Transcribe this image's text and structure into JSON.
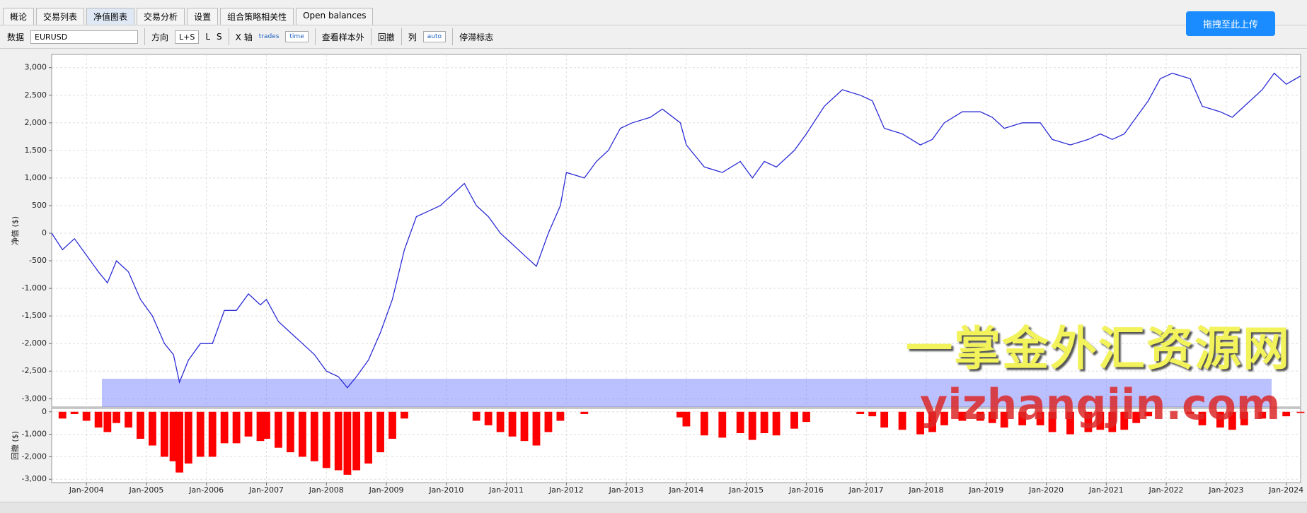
{
  "tabs": [
    "概论",
    "交易列表",
    "净值图表",
    "交易分析",
    "设置",
    "组合策略相关性",
    "Open balances"
  ],
  "toolbar": {
    "data_label": "数据",
    "symbol": "EURUSD",
    "direction_label": "方向",
    "directions": [
      "L+S",
      "L",
      "S"
    ],
    "x_axis_label": "X 轴",
    "x_axis_options": [
      "trades",
      "time"
    ],
    "out_of_sample": "查看样本外",
    "drawdown_label": "回撤",
    "columns_label": "列",
    "columns_option": "auto",
    "stagnation_label": "停滞标志"
  },
  "upload_button": "拖拽至此上传",
  "watermark": {
    "title": "一掌金外汇资源网",
    "site": "yizhangjin.com"
  },
  "chart_data": [
    {
      "type": "line",
      "ylabel": "净值 ($)",
      "xlim": [
        2003.42,
        2024.24
      ],
      "ylim": [
        -3150,
        3240
      ],
      "yticks": [
        {
          "value": 3000,
          "label": "3,000"
        },
        {
          "value": 2500,
          "label": "2,500"
        },
        {
          "value": 2000,
          "label": "2,000"
        },
        {
          "value": 1500,
          "label": "1,500"
        },
        {
          "value": 1000,
          "label": "1,000"
        },
        500,
        0,
        -500,
        {
          "value": -1000,
          "label": "-1,000"
        },
        {
          "value": -1500,
          "label": "-1,500"
        },
        {
          "value": -2000,
          "label": "-2,000"
        },
        {
          "value": -2500,
          "label": "-2,500"
        },
        {
          "value": -3000,
          "label": "-3,000"
        }
      ],
      "grid": true,
      "series": [
        {
          "color": "#2b2bd6",
          "x": [
            2003.42,
            2003.6,
            2003.8,
            2004.0,
            2004.2,
            2004.35,
            2004.5,
            2004.7,
            2004.9,
            2005.1,
            2005.3,
            2005.45,
            2005.55,
            2005.7,
            2005.9,
            2006.1,
            2006.3,
            2006.5,
            2006.7,
            2006.9,
            2007.0,
            2007.2,
            2007.4,
            2007.6,
            2007.8,
            2008.0,
            2008.2,
            2008.35,
            2008.5,
            2008.7,
            2008.9,
            2009.1,
            2009.3,
            2009.5,
            2009.7,
            2009.9,
            2010.1,
            2010.3,
            2010.5,
            2010.7,
            2010.9,
            2011.1,
            2011.3,
            2011.5,
            2011.7,
            2011.9,
            2012.0,
            2012.3,
            2012.5,
            2012.7,
            2012.9,
            2013.1,
            2013.4,
            2013.6,
            2013.9,
            2014.0,
            2014.3,
            2014.6,
            2014.9,
            2015.1,
            2015.3,
            2015.5,
            2015.8,
            2016.0,
            2016.3,
            2016.6,
            2016.9,
            2017.1,
            2017.3,
            2017.6,
            2017.9,
            2018.1,
            2018.3,
            2018.6,
            2018.9,
            2019.1,
            2019.3,
            2019.6,
            2019.9,
            2020.1,
            2020.4,
            2020.7,
            2020.9,
            2021.1,
            2021.3,
            2021.5,
            2021.7,
            2021.9,
            2022.1,
            2022.4,
            2022.6,
            2022.9,
            2023.1,
            2023.3,
            2023.6,
            2023.8,
            2024.0,
            2024.24
          ],
          "values": [
            0,
            -300,
            -100,
            -400,
            -700,
            -900,
            -500,
            -700,
            -1200,
            -1500,
            -2000,
            -2200,
            -2700,
            -2300,
            -2000,
            -2000,
            -1400,
            -1400,
            -1100,
            -1300,
            -1200,
            -1600,
            -1800,
            -2000,
            -2200,
            -2500,
            -2600,
            -2800,
            -2600,
            -2300,
            -1800,
            -1200,
            -300,
            300,
            400,
            500,
            700,
            900,
            500,
            300,
            0,
            -200,
            -400,
            -600,
            0,
            500,
            1100,
            1000,
            1300,
            1500,
            1900,
            2000,
            2100,
            2250,
            2000,
            1600,
            1200,
            1100,
            1300,
            1000,
            1300,
            1200,
            1500,
            1800,
            2300,
            2600,
            2500,
            2400,
            1900,
            1800,
            1600,
            1700,
            2000,
            2200,
            2200,
            2100,
            1900,
            2000,
            2000,
            1700,
            1600,
            1700,
            1800,
            1700,
            1800,
            2100,
            2400,
            2800,
            2900,
            2800,
            2300,
            2200,
            2100,
            2300,
            2600,
            2900,
            2700,
            2850
          ]
        }
      ]
    },
    {
      "type": "bar",
      "ylabel": "回撤 ($)",
      "xlim": [
        2003.42,
        2024.24
      ],
      "ylim": [
        -3150,
        150
      ],
      "yticks": [
        0,
        {
          "value": -1000,
          "label": "-1,000"
        },
        {
          "value": -2000,
          "label": "-2,000"
        },
        {
          "value": -3000,
          "label": "-3,000"
        }
      ],
      "xticks": [
        {
          "value": 2004,
          "label": "Jan-2004"
        },
        {
          "value": 2005,
          "label": "Jan-2005"
        },
        {
          "value": 2006,
          "label": "Jan-2006"
        },
        {
          "value": 2007,
          "label": "Jan-2007"
        },
        {
          "value": 2008,
          "label": "Jan-2008"
        },
        {
          "value": 2009,
          "label": "Jan-2009"
        },
        {
          "value": 2010,
          "label": "Jan-2010"
        },
        {
          "value": 2011,
          "label": "Jan-2011"
        },
        {
          "value": 2012,
          "label": "Jan-2012"
        },
        {
          "value": 2013,
          "label": "Jan-2013"
        },
        {
          "value": 2014,
          "label": "Jan-2014"
        },
        {
          "value": 2015,
          "label": "Jan-2015"
        },
        {
          "value": 2016,
          "label": "Jan-2016"
        },
        {
          "value": 2017,
          "label": "Jan-2017"
        },
        {
          "value": 2018,
          "label": "Jan-2018"
        },
        {
          "value": 2019,
          "label": "Jan-2019"
        },
        {
          "value": 2020,
          "label": "Jan-2020"
        },
        {
          "value": 2021,
          "label": "Jan-2021"
        },
        {
          "value": 2022,
          "label": "Jan-2022"
        },
        {
          "value": 2023,
          "label": "Jan-2023"
        },
        {
          "value": 2024,
          "label": "Jan-2024"
        }
      ],
      "grid": true,
      "series": [
        {
          "color": "#ff0000",
          "x": [
            2003.42,
            2003.6,
            2003.8,
            2004.0,
            2004.2,
            2004.35,
            2004.5,
            2004.7,
            2004.9,
            2005.1,
            2005.3,
            2005.45,
            2005.55,
            2005.7,
            2005.9,
            2006.1,
            2006.3,
            2006.5,
            2006.7,
            2006.9,
            2007.0,
            2007.2,
            2007.4,
            2007.6,
            2007.8,
            2008.0,
            2008.2,
            2008.35,
            2008.5,
            2008.7,
            2008.9,
            2009.1,
            2009.3,
            2009.5,
            2009.7,
            2009.9,
            2010.1,
            2010.3,
            2010.5,
            2010.7,
            2010.9,
            2011.1,
            2011.3,
            2011.5,
            2011.7,
            2011.9,
            2012.0,
            2012.3,
            2012.5,
            2012.7,
            2012.9,
            2013.1,
            2013.4,
            2013.6,
            2013.9,
            2014.0,
            2014.3,
            2014.6,
            2014.9,
            2015.1,
            2015.3,
            2015.5,
            2015.8,
            2016.0,
            2016.3,
            2016.6,
            2016.9,
            2017.1,
            2017.3,
            2017.6,
            2017.9,
            2018.1,
            2018.3,
            2018.6,
            2018.9,
            2019.1,
            2019.3,
            2019.6,
            2019.9,
            2020.1,
            2020.4,
            2020.7,
            2020.9,
            2021.1,
            2021.3,
            2021.5,
            2021.7,
            2021.9,
            2022.1,
            2022.4,
            2022.6,
            2022.9,
            2023.1,
            2023.3,
            2023.6,
            2023.8,
            2024.0,
            2024.24
          ],
          "values": [
            0,
            -300,
            -100,
            -400,
            -700,
            -900,
            -500,
            -700,
            -1200,
            -1500,
            -2000,
            -2200,
            -2700,
            -2300,
            -2000,
            -2000,
            -1400,
            -1400,
            -1100,
            -1300,
            -1200,
            -1600,
            -1800,
            -2000,
            -2200,
            -2500,
            -2600,
            -2800,
            -2600,
            -2300,
            -1800,
            -1200,
            -300,
            0,
            0,
            0,
            0,
            0,
            -400,
            -600,
            -900,
            -1100,
            -1300,
            -1500,
            -900,
            -400,
            0,
            -100,
            0,
            0,
            0,
            0,
            0,
            0,
            -250,
            -650,
            -1050,
            -1150,
            -950,
            -1250,
            -950,
            -1050,
            -750,
            -450,
            0,
            0,
            -100,
            -200,
            -700,
            -800,
            -1000,
            -900,
            -600,
            -400,
            -400,
            -500,
            -700,
            -600,
            -600,
            -900,
            -1000,
            -900,
            -800,
            -900,
            -800,
            -500,
            -200,
            0,
            0,
            -100,
            -600,
            -700,
            -800,
            -600,
            -300,
            0,
            -200,
            -50
          ]
        }
      ]
    }
  ]
}
